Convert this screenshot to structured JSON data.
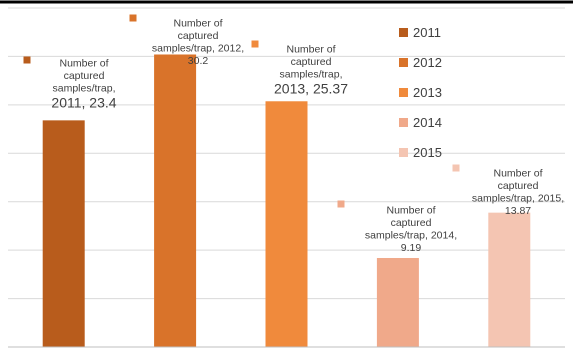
{
  "chart_data": {
    "type": "bar",
    "categories": [
      "2011",
      "2012",
      "2013",
      "2014",
      "2015"
    ],
    "series": [
      {
        "values": [
          23.4,
          30.2,
          25.37,
          9.19,
          13.87
        ]
      }
    ],
    "colors": [
      "#b85c1c",
      "#d9732a",
      "#f08a3c",
      "#f0a98a",
      "#f4c5b2"
    ],
    "data_labels": [
      [
        "Number of",
        "captured",
        "samples/trap,",
        "2011, 23.4"
      ],
      [
        "Number of",
        "captured",
        "samples/trap, 2012,",
        "30.2"
      ],
      [
        "Number of",
        "captured",
        "samples/trap,",
        "2013, 25.37"
      ],
      [
        "Number of",
        "captured",
        "samples/trap, 2014,",
        "9.19"
      ],
      [
        "Number of",
        "captured",
        "samples/trap, 2015,",
        "13.87"
      ]
    ],
    "legend": [
      "2011",
      "2012",
      "2013",
      "2014",
      "2015"
    ],
    "legend_position": "right",
    "ylim": [
      0,
      35
    ],
    "grid": true,
    "title": "",
    "xlabel": "",
    "ylabel": ""
  }
}
